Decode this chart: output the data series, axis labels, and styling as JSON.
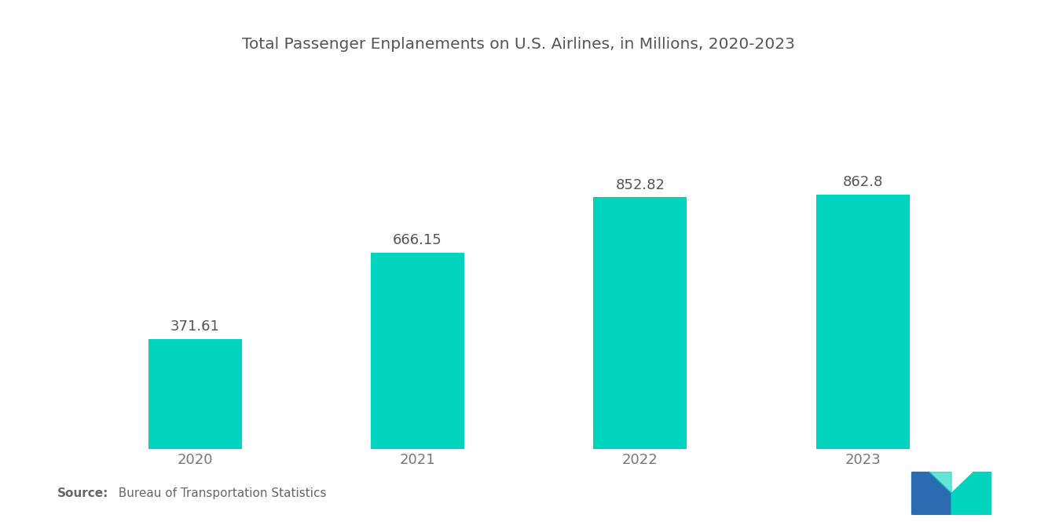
{
  "title": "Total Passenger Enplanements on U.S. Airlines, in Millions, 2020-2023",
  "categories": [
    "2020",
    "2021",
    "2022",
    "2023"
  ],
  "values": [
    371.61,
    666.15,
    852.82,
    862.8
  ],
  "bar_color": "#00D4BE",
  "background_color": "#FFFFFF",
  "title_fontsize": 14.5,
  "label_fontsize": 13,
  "tick_fontsize": 13,
  "source_bold": "Source:",
  "source_rest": "  Bureau of Transportation Statistics",
  "source_fontsize": 11,
  "ylim": [
    0,
    1150
  ],
  "bar_width": 0.42,
  "logo_blue": "#2B6CB0",
  "logo_teal": "#00D4BE",
  "title_color": "#555555",
  "label_color": "#555555",
  "tick_color": "#777777"
}
